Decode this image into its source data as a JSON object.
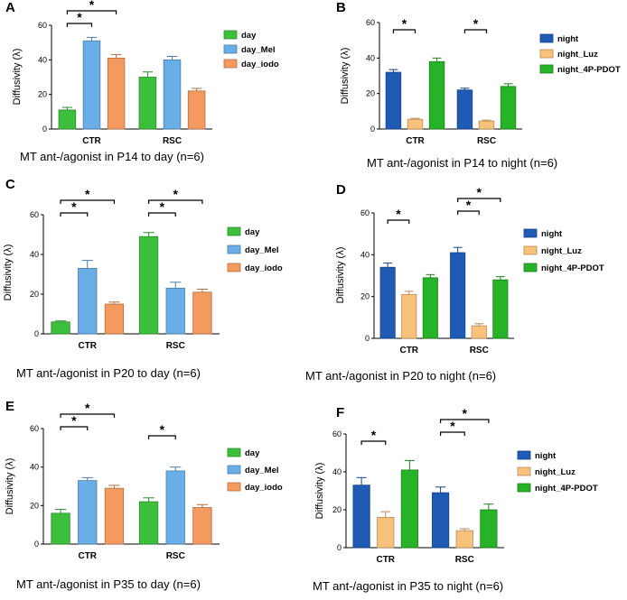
{
  "colors": {
    "day": "#3cc03c",
    "day_Mel": "#6aaee8",
    "day_iodo": "#f59a5e",
    "night": "#1f5bb5",
    "night_Luz": "#f9c27a",
    "night_4P_PDOT": "#27b327"
  },
  "chart_data": [
    {
      "type": "bar",
      "panel": "A",
      "title": "MT ant-/agonist in P14 to day (n=6)",
      "ylabel": "Diffusivity (λ)",
      "ylim": [
        0,
        60
      ],
      "yticks": [
        0,
        20,
        40,
        60
      ],
      "categories": [
        "CTR",
        "RSC"
      ],
      "series": [
        {
          "name": "day",
          "color_key": "day",
          "values": [
            11,
            30
          ],
          "errors": [
            1.5,
            3
          ]
        },
        {
          "name": "day_Mel",
          "color_key": "day_Mel",
          "values": [
            51,
            40
          ],
          "errors": [
            2,
            2
          ]
        },
        {
          "name": "day_iodo",
          "color_key": "day_iodo",
          "values": [
            41,
            22
          ],
          "errors": [
            2,
            1.5
          ]
        }
      ],
      "significance": [
        {
          "cat": 0,
          "from": 0,
          "to": 1
        },
        {
          "cat": 0,
          "from": 0,
          "to": 2
        }
      ]
    },
    {
      "type": "bar",
      "panel": "B",
      "title": "MT ant-/agonist in P14 to night (n=6)",
      "ylabel": "Diffusivity (λ)",
      "ylim": [
        0,
        60
      ],
      "yticks": [
        0,
        20,
        40,
        60
      ],
      "categories": [
        "CTR",
        "RSC"
      ],
      "series": [
        {
          "name": "night",
          "color_key": "night",
          "values": [
            32,
            22
          ],
          "errors": [
            1.5,
            1
          ]
        },
        {
          "name": "night_Luz",
          "color_key": "night_Luz",
          "values": [
            5.5,
            4.5
          ],
          "errors": [
            0.5,
            0.5
          ]
        },
        {
          "name": "night_4P-PDOT",
          "color_key": "night_4P_PDOT",
          "values": [
            38,
            24
          ],
          "errors": [
            2,
            1.5
          ]
        }
      ],
      "significance": [
        {
          "cat": 0,
          "from": 0,
          "to": 1
        },
        {
          "cat": 1,
          "from": 0,
          "to": 1
        }
      ]
    },
    {
      "type": "bar",
      "panel": "C",
      "title": "MT ant-/agonist in P20 to day (n=6)",
      "ylabel": "Diffusivity (λ)",
      "ylim": [
        0,
        60
      ],
      "yticks": [
        0,
        20,
        40,
        60
      ],
      "categories": [
        "CTR",
        "RSC"
      ],
      "series": [
        {
          "name": "day",
          "color_key": "day",
          "values": [
            6,
            49
          ],
          "errors": [
            0.5,
            2
          ]
        },
        {
          "name": "day_Mel",
          "color_key": "day_Mel",
          "values": [
            33,
            23
          ],
          "errors": [
            4,
            3
          ]
        },
        {
          "name": "day_iodo",
          "color_key": "day_iodo",
          "values": [
            15,
            21
          ],
          "errors": [
            1,
            1.5
          ]
        }
      ],
      "significance": [
        {
          "cat": 0,
          "from": 0,
          "to": 1
        },
        {
          "cat": 0,
          "from": 0,
          "to": 2
        },
        {
          "cat": 1,
          "from": 0,
          "to": 1
        },
        {
          "cat": 1,
          "from": 0,
          "to": 2
        }
      ]
    },
    {
      "type": "bar",
      "panel": "D",
      "title": "MT ant-/agonist in P20 to night (n=6)",
      "ylabel": "Diffusivity (λ)",
      "ylim": [
        0,
        60
      ],
      "yticks": [
        0,
        20,
        40,
        60
      ],
      "categories": [
        "CTR",
        "RSC"
      ],
      "series": [
        {
          "name": "night",
          "color_key": "night",
          "values": [
            34,
            41
          ],
          "errors": [
            2,
            2.5
          ]
        },
        {
          "name": "night_Luz",
          "color_key": "night_Luz",
          "values": [
            21,
            6
          ],
          "errors": [
            1.5,
            1
          ]
        },
        {
          "name": "night_4P-PDOT",
          "color_key": "night_4P_PDOT",
          "values": [
            29,
            28
          ],
          "errors": [
            1.5,
            1.5
          ]
        }
      ],
      "significance": [
        {
          "cat": 0,
          "from": 0,
          "to": 1
        },
        {
          "cat": 1,
          "from": 0,
          "to": 1
        },
        {
          "cat": 1,
          "from": 0,
          "to": 2
        }
      ]
    },
    {
      "type": "bar",
      "panel": "E",
      "title": "MT ant-/agonist in P35 to day (n=6)",
      "ylabel": "Diffusivity (λ)",
      "ylim": [
        0,
        60
      ],
      "yticks": [
        0,
        20,
        40,
        60
      ],
      "categories": [
        "CTR",
        "RSC"
      ],
      "series": [
        {
          "name": "day",
          "color_key": "day",
          "values": [
            16,
            22
          ],
          "errors": [
            2,
            2
          ]
        },
        {
          "name": "day_Mel",
          "color_key": "day_Mel",
          "values": [
            33,
            38
          ],
          "errors": [
            1.5,
            2
          ]
        },
        {
          "name": "day_iodo",
          "color_key": "day_iodo",
          "values": [
            29,
            19
          ],
          "errors": [
            1.5,
            1.5
          ]
        }
      ],
      "significance": [
        {
          "cat": 0,
          "from": 0,
          "to": 1
        },
        {
          "cat": 0,
          "from": 0,
          "to": 2
        },
        {
          "cat": 1,
          "from": 0,
          "to": 1
        }
      ]
    },
    {
      "type": "bar",
      "panel": "F",
      "title": "MT ant-/agonist in P35 to night (n=6)",
      "ylabel": "Diffusivity (λ)",
      "ylim": [
        0,
        60
      ],
      "yticks": [
        0,
        20,
        40,
        60
      ],
      "categories": [
        "CTR",
        "RSC"
      ],
      "series": [
        {
          "name": "night",
          "color_key": "night",
          "values": [
            33,
            29
          ],
          "errors": [
            4,
            3
          ]
        },
        {
          "name": "night_Luz",
          "color_key": "night_Luz",
          "values": [
            16,
            9
          ],
          "errors": [
            3,
            1
          ]
        },
        {
          "name": "night_4P-PDOT",
          "color_key": "night_4P_PDOT",
          "values": [
            41,
            20
          ],
          "errors": [
            5,
            3
          ]
        }
      ],
      "significance": [
        {
          "cat": 0,
          "from": 0,
          "to": 1
        },
        {
          "cat": 1,
          "from": 0,
          "to": 1
        },
        {
          "cat": 1,
          "from": 0,
          "to": 2
        }
      ]
    }
  ]
}
